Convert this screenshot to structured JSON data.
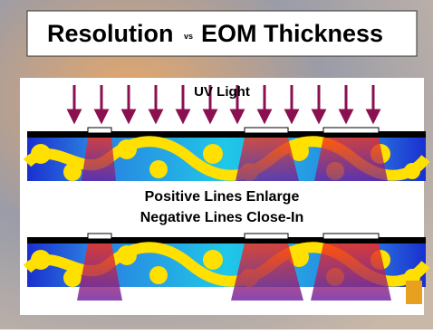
{
  "title": {
    "left": "Resolution",
    "vs": "vs",
    "right": "EOM Thickness"
  },
  "uv_label": "UV Light",
  "captions": [
    "Positive Lines Enlarge",
    "Negative Lines Close-In"
  ]
}
